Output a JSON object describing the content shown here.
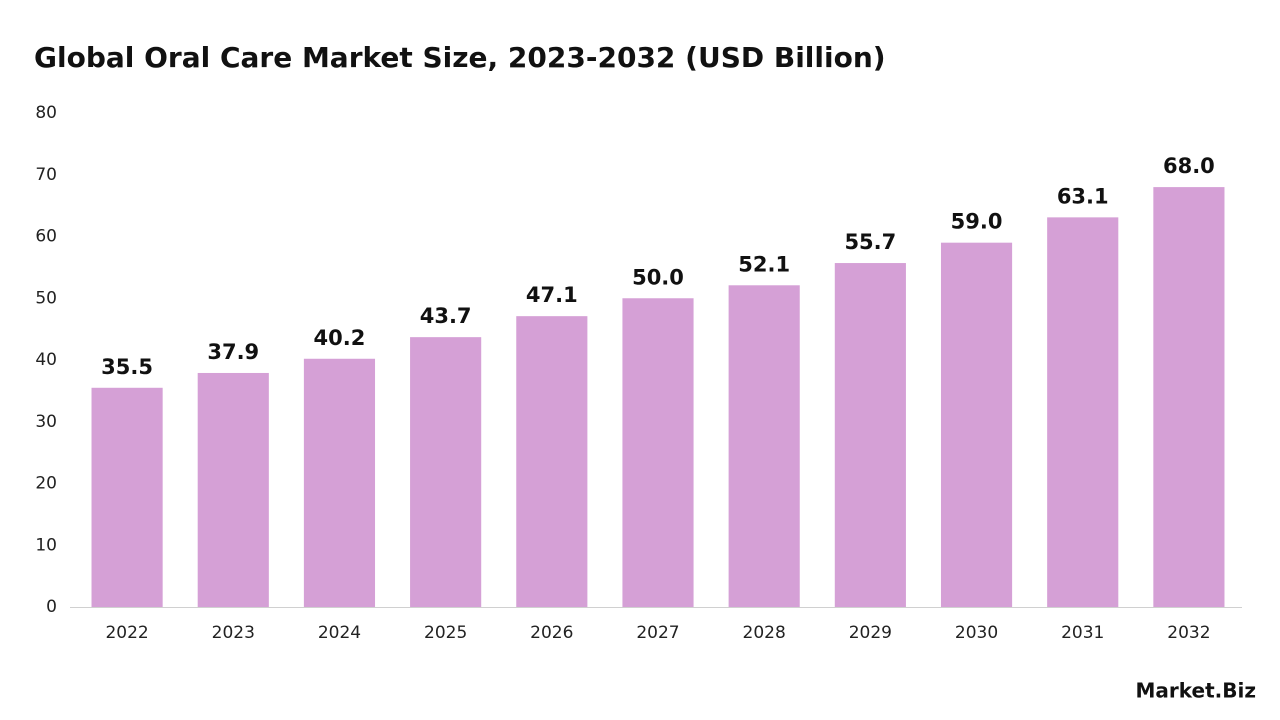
{
  "chart_data": {
    "type": "bar",
    "title": "Global Oral Care Market Size, 2023-2032 (USD Billion)",
    "categories": [
      "2022",
      "2023",
      "2024",
      "2025",
      "2026",
      "2027",
      "2028",
      "2029",
      "2030",
      "2031",
      "2032"
    ],
    "values": [
      35.5,
      37.9,
      40.2,
      43.7,
      47.1,
      50.0,
      52.1,
      55.7,
      59.0,
      63.1,
      68.0
    ],
    "value_labels": [
      "35.5",
      "37.9",
      "40.2",
      "43.7",
      "47.1",
      "50.0",
      "52.1",
      "55.7",
      "59.0",
      "63.1",
      "68.0"
    ],
    "color": "#d5a0d6",
    "ylim": [
      0,
      80
    ],
    "yticks": [
      0,
      10,
      20,
      30,
      40,
      50,
      60,
      70,
      80
    ],
    "grid": false,
    "logo": "Market.Biz"
  }
}
